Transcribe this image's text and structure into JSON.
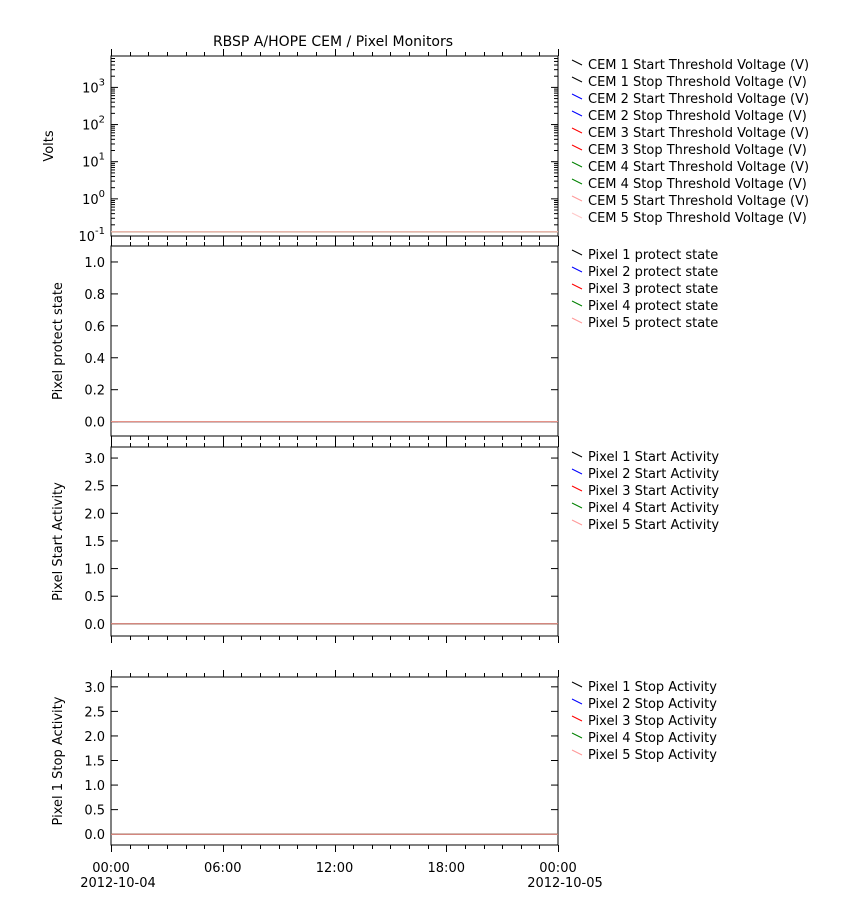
{
  "title": "RBSP A/HOPE  CEM / Pixel Monitors",
  "colors": {
    "black": "#000000",
    "blue": "#0000ff",
    "red": "#ff0000",
    "green": "#008000",
    "pink": "#ff9999",
    "lightpink": "#ffc8c8",
    "olive": "#556b00"
  },
  "xaxis": {
    "ticks": [
      {
        "time": "00:00",
        "date": "2012-10-04"
      },
      {
        "time": "06:00",
        "date": ""
      },
      {
        "time": "12:00",
        "date": ""
      },
      {
        "time": "18:00",
        "date": ""
      },
      {
        "time": "00:00",
        "date": "2012-10-05"
      }
    ],
    "range_hours": [
      0,
      24
    ]
  },
  "chart_data": [
    {
      "type": "line",
      "ylabel": "Volts",
      "yscale": "log",
      "ylim": [
        0.1,
        7000
      ],
      "yticks": [
        {
          "base": "10",
          "exp": "-1",
          "value": 0.1
        },
        {
          "base": "10",
          "exp": "0",
          "value": 1
        },
        {
          "base": "10",
          "exp": "1",
          "value": 10
        },
        {
          "base": "10",
          "exp": "2",
          "value": 100
        },
        {
          "base": "10",
          "exp": "3",
          "value": 1000
        }
      ],
      "x": [
        0,
        24
      ],
      "series": [
        {
          "name": "CEM 1 Start Threshold Voltage (V)",
          "color": "#000000",
          "values": [
            0.13,
            0.13
          ]
        },
        {
          "name": "CEM 1 Stop Threshold Voltage (V)",
          "color": "#000000",
          "values": [
            0.13,
            0.13
          ]
        },
        {
          "name": "CEM 2 Start Threshold Voltage (V)",
          "color": "#0000ff",
          "values": [
            0.13,
            0.13
          ]
        },
        {
          "name": "CEM 2 Stop Threshold Voltage (V)",
          "color": "#0000ff",
          "values": [
            0.13,
            0.13
          ]
        },
        {
          "name": "CEM 3 Start Threshold Voltage (V)",
          "color": "#ff0000",
          "values": [
            0.13,
            0.13
          ]
        },
        {
          "name": "CEM 3 Stop Threshold Voltage (V)",
          "color": "#ff0000",
          "values": [
            0.13,
            0.13
          ]
        },
        {
          "name": "CEM 4 Start Threshold Voltage (V)",
          "color": "#008000",
          "values": [
            0.13,
            0.13
          ]
        },
        {
          "name": "CEM 4 Stop Threshold Voltage (V)",
          "color": "#008000",
          "values": [
            0.13,
            0.13
          ]
        },
        {
          "name": "CEM 5 Start Threshold Voltage (V)",
          "color": "#ff9999",
          "values": [
            0.13,
            0.13
          ]
        },
        {
          "name": "CEM 5 Stop Threshold Voltage (V)",
          "color": "#ffc8c8",
          "values": [
            0.13,
            0.13
          ]
        }
      ]
    },
    {
      "type": "line",
      "ylabel": "Pixel protect state",
      "yscale": "linear",
      "ylim": [
        -0.09,
        1.1
      ],
      "yticks": [
        {
          "label": "0.0",
          "value": 0.0
        },
        {
          "label": "0.2",
          "value": 0.2
        },
        {
          "label": "0.4",
          "value": 0.4
        },
        {
          "label": "0.6",
          "value": 0.6
        },
        {
          "label": "0.8",
          "value": 0.8
        },
        {
          "label": "1.0",
          "value": 1.0
        }
      ],
      "x": [
        0,
        24
      ],
      "series": [
        {
          "name": "Pixel 1 protect state",
          "color": "#000000",
          "values": [
            0,
            0
          ]
        },
        {
          "name": "Pixel 2 protect state",
          "color": "#0000ff",
          "values": [
            0,
            0
          ]
        },
        {
          "name": "Pixel 3 protect state",
          "color": "#ff0000",
          "values": [
            0,
            0
          ]
        },
        {
          "name": "Pixel 4 protect state",
          "color": "#008000",
          "values": [
            0,
            0
          ]
        },
        {
          "name": "Pixel 5 protect state",
          "color": "#ff9999",
          "values": [
            0,
            0
          ]
        }
      ]
    },
    {
      "type": "line",
      "ylabel": "Pixel Start Activity",
      "yscale": "linear",
      "ylim": [
        -0.22,
        3.2
      ],
      "yticks": [
        {
          "label": "0.0",
          "value": 0.0
        },
        {
          "label": "0.5",
          "value": 0.5
        },
        {
          "label": "1.0",
          "value": 1.0
        },
        {
          "label": "1.5",
          "value": 1.5
        },
        {
          "label": "2.0",
          "value": 2.0
        },
        {
          "label": "2.5",
          "value": 2.5
        },
        {
          "label": "3.0",
          "value": 3.0
        }
      ],
      "x": [
        0,
        24
      ],
      "series": [
        {
          "name": "Pixel 1 Start Activity",
          "color": "#000000",
          "values": [
            0,
            0
          ]
        },
        {
          "name": "Pixel 2 Start Activity",
          "color": "#0000ff",
          "values": [
            0,
            0
          ]
        },
        {
          "name": "Pixel 3 Start Activity",
          "color": "#ff0000",
          "values": [
            0,
            0
          ]
        },
        {
          "name": "Pixel 4 Start Activity",
          "color": "#008000",
          "values": [
            0,
            0
          ]
        },
        {
          "name": "Pixel 5 Start Activity",
          "color": "#ff9999",
          "values": [
            0,
            0
          ]
        }
      ]
    },
    {
      "type": "line",
      "ylabel": "Pixel 1 Stop Activity",
      "yscale": "linear",
      "ylim": [
        -0.22,
        3.2
      ],
      "yticks": [
        {
          "label": "0.0",
          "value": 0.0
        },
        {
          "label": "0.5",
          "value": 0.5
        },
        {
          "label": "1.0",
          "value": 1.0
        },
        {
          "label": "1.5",
          "value": 1.5
        },
        {
          "label": "2.0",
          "value": 2.0
        },
        {
          "label": "2.5",
          "value": 2.5
        },
        {
          "label": "3.0",
          "value": 3.0
        }
      ],
      "x": [
        0,
        24
      ],
      "series": [
        {
          "name": "Pixel 1 Stop Activity",
          "color": "#000000",
          "values": [
            0,
            0
          ]
        },
        {
          "name": "Pixel 2 Stop Activity",
          "color": "#0000ff",
          "values": [
            0,
            0
          ]
        },
        {
          "name": "Pixel 3 Stop Activity",
          "color": "#ff0000",
          "values": [
            0,
            0
          ]
        },
        {
          "name": "Pixel 4 Stop Activity",
          "color": "#008000",
          "values": [
            0,
            0
          ]
        },
        {
          "name": "Pixel 5 Stop Activity",
          "color": "#ff9999",
          "values": [
            0,
            0
          ]
        }
      ]
    }
  ]
}
